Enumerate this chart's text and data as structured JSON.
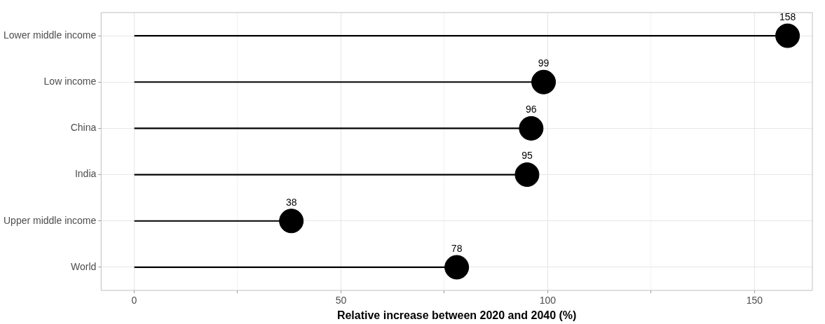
{
  "chart_data": {
    "type": "lollipop",
    "orientation": "horizontal",
    "xlabel": "Relative increase between 2020 and 2040 (%)",
    "categories": [
      "Lower middle income",
      "Low income",
      "China",
      "India",
      "Upper middle income",
      "World"
    ],
    "values": [
      158,
      99,
      96,
      95,
      38,
      78
    ],
    "color": "#000000",
    "marker": "circle",
    "data_labels": true,
    "grid": true,
    "xlim": [
      -8,
      164
    ],
    "xticks": [
      0,
      {
        "value": 25,
        "label": null
      },
      50,
      {
        "value": 75,
        "label": null
      },
      100,
      {
        "value": 125,
        "label": null
      },
      150
    ]
  }
}
